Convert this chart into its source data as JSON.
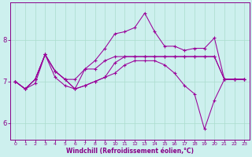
{
  "xlabel": "Windchill (Refroidissement éolien,°C)",
  "ylabel": "",
  "bg_color": "#cdf0ee",
  "line_color": "#990099",
  "grid_color": "#aaddcc",
  "xlabel_color": "#880088",
  "tick_color": "#880088",
  "spine_color": "#880088",
  "xlim": [
    -0.5,
    23.5
  ],
  "ylim": [
    5.6,
    8.9
  ],
  "yticks": [
    6,
    7,
    8
  ],
  "xticks": [
    0,
    1,
    2,
    3,
    4,
    5,
    6,
    7,
    8,
    9,
    10,
    11,
    12,
    13,
    14,
    15,
    16,
    17,
    18,
    19,
    20,
    21,
    22,
    23
  ],
  "series": [
    [
      7.0,
      6.82,
      6.95,
      7.65,
      7.1,
      6.9,
      6.82,
      7.3,
      7.5,
      7.8,
      8.15,
      8.2,
      8.3,
      8.65,
      8.2,
      7.85,
      7.85,
      7.75,
      7.8,
      7.8,
      8.05,
      7.05,
      7.05,
      7.05
    ],
    [
      7.0,
      6.82,
      7.05,
      7.65,
      7.25,
      7.05,
      7.05,
      7.3,
      7.3,
      7.5,
      7.6,
      7.6,
      7.6,
      7.6,
      7.6,
      7.6,
      7.6,
      7.6,
      7.6,
      7.6,
      7.6,
      7.05,
      7.05,
      7.05
    ],
    [
      7.0,
      6.82,
      7.05,
      7.65,
      7.25,
      7.05,
      6.82,
      6.9,
      7.0,
      7.1,
      7.45,
      7.6,
      7.6,
      7.6,
      7.6,
      7.6,
      7.6,
      7.6,
      7.6,
      7.6,
      7.6,
      7.05,
      7.05,
      7.05
    ],
    [
      7.0,
      6.82,
      7.05,
      7.65,
      7.25,
      7.05,
      6.82,
      6.9,
      7.0,
      7.1,
      7.2,
      7.4,
      7.5,
      7.5,
      7.5,
      7.4,
      7.2,
      6.9,
      6.7,
      5.85,
      6.55,
      7.05,
      7.05,
      7.05
    ]
  ]
}
